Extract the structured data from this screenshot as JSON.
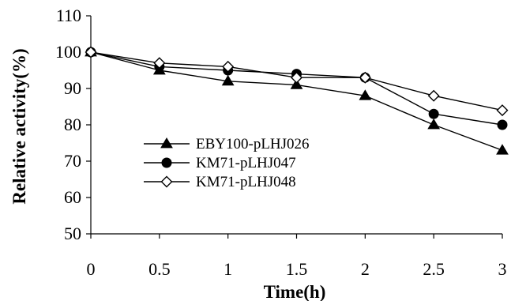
{
  "chart_data": {
    "type": "line",
    "title": "",
    "xlabel": "Time(h)",
    "ylabel": "Relative activity(%)",
    "x": [
      0,
      0.5,
      1,
      1.5,
      2,
      2.5,
      3
    ],
    "xticks": [
      "0",
      "0.5",
      "1",
      "1.5",
      "2",
      "2.5",
      "3"
    ],
    "xlim": [
      0,
      3
    ],
    "yticks": [
      "50",
      "60",
      "70",
      "80",
      "90",
      "100",
      "110"
    ],
    "ylim": [
      50,
      110
    ],
    "grid": false,
    "legend_position": "left-middle",
    "series": [
      {
        "name": "EBY100-pLHJ026",
        "marker": "triangle-filled",
        "color": "#000000",
        "values": [
          100,
          95,
          92,
          91,
          88,
          80,
          73
        ]
      },
      {
        "name": "KM71-pLHJ047",
        "marker": "circle-filled",
        "color": "#000000",
        "values": [
          100,
          96,
          95,
          94,
          93,
          83,
          80
        ]
      },
      {
        "name": "KM71-pLHJ048",
        "marker": "diamond-open",
        "color": "#000000",
        "values": [
          100,
          97,
          96,
          93,
          93,
          88,
          84
        ]
      }
    ]
  }
}
